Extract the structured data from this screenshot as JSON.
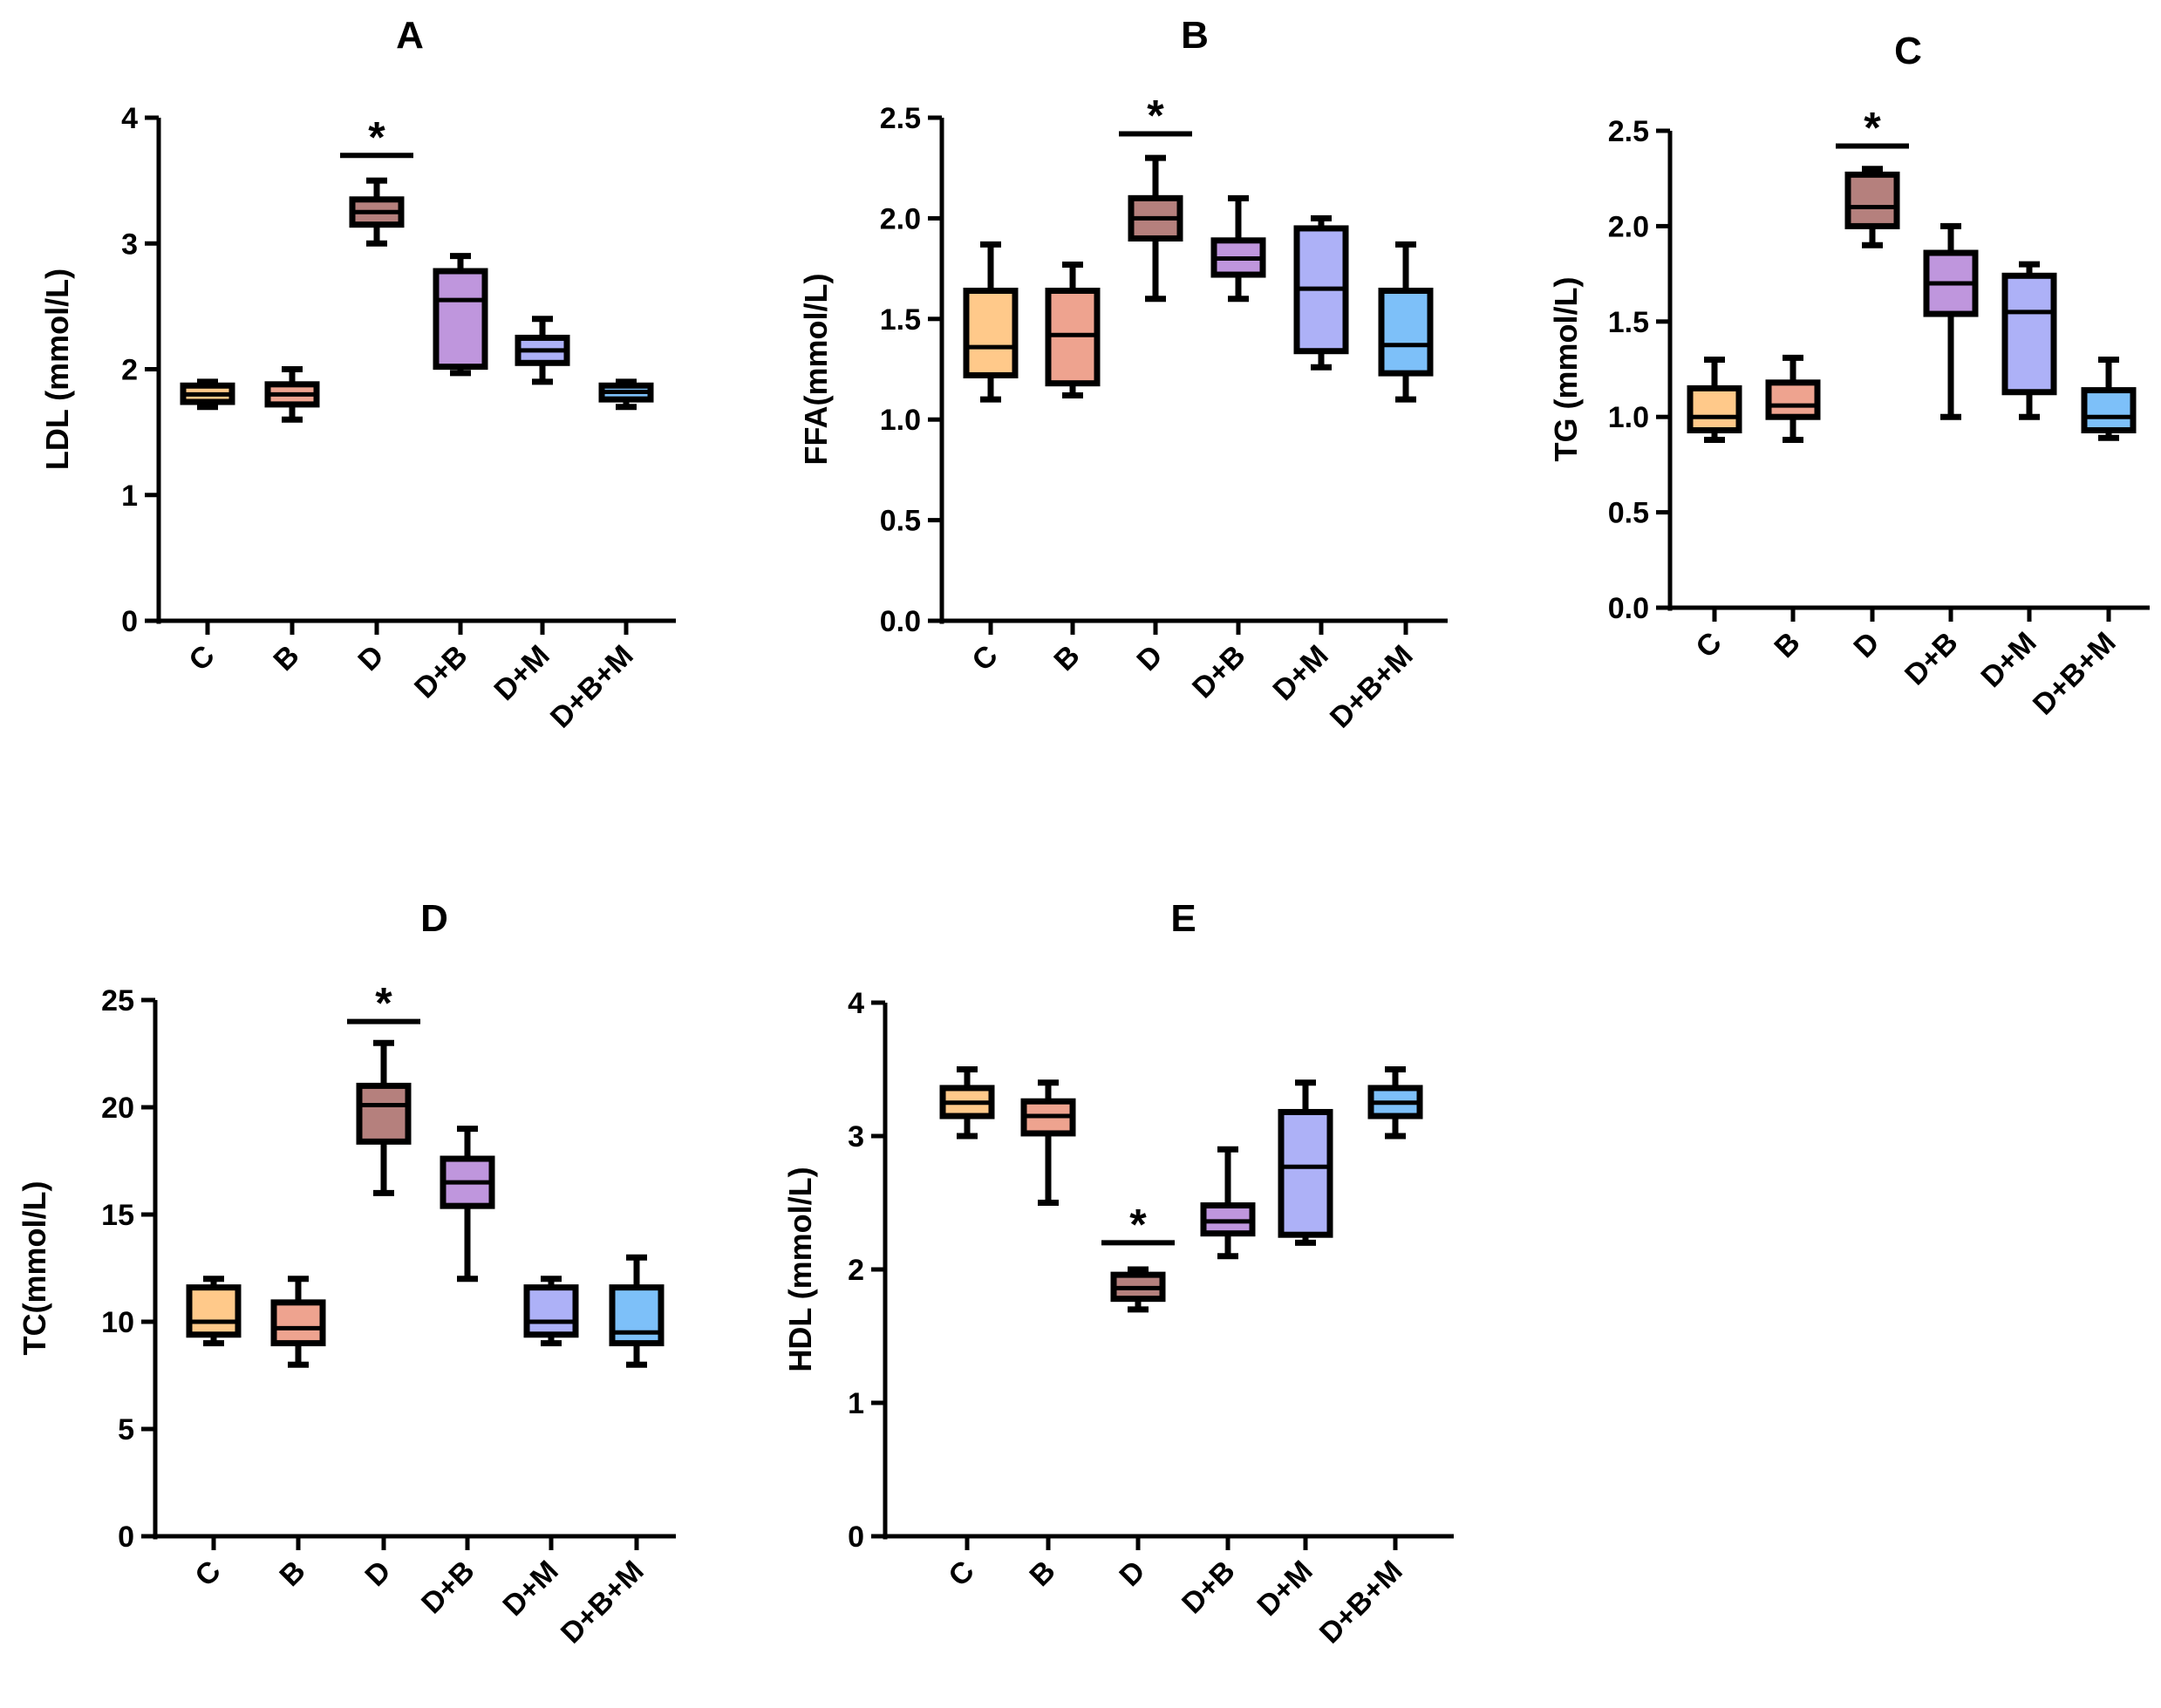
{
  "figure": {
    "colors": {
      "C": "#FFC98A",
      "B": "#EEA38F",
      "D": "#B5807D",
      "D+B": "#BF96DD",
      "D+M": "#ADB1F7",
      "D+B+M": "#7DC0F9",
      "outline": "#000000"
    }
  },
  "chart_data": [
    {
      "type": "box",
      "panel": "A",
      "title": "A",
      "ylabel": "LDL (mmol/L)",
      "ylim": [
        0,
        4
      ],
      "yticks": [
        "0",
        "1",
        "2",
        "3",
        "4"
      ],
      "yticks_values": [
        0,
        1,
        2,
        3,
        4
      ],
      "categories": [
        "C",
        "B",
        "D",
        "D+B",
        "D+M",
        "D+B+M"
      ],
      "boxes": [
        {
          "min": 1.7,
          "q1": 1.74,
          "median": 1.8,
          "q3": 1.87,
          "max": 1.9
        },
        {
          "min": 1.6,
          "q1": 1.72,
          "median": 1.8,
          "q3": 1.88,
          "max": 2.0
        },
        {
          "min": 3.0,
          "q1": 3.15,
          "median": 3.25,
          "q3": 3.35,
          "max": 3.5
        },
        {
          "min": 1.97,
          "q1": 2.02,
          "median": 2.55,
          "q3": 2.78,
          "max": 2.9
        },
        {
          "min": 1.9,
          "q1": 2.05,
          "median": 2.15,
          "q3": 2.25,
          "max": 2.4
        },
        {
          "min": 1.7,
          "q1": 1.76,
          "median": 1.82,
          "q3": 1.87,
          "max": 1.9
        }
      ],
      "significance": [
        {
          "category": "D",
          "label": "*",
          "value": 3.7
        }
      ]
    },
    {
      "type": "box",
      "panel": "B",
      "title": "B",
      "ylabel": "FFA(mmol/L)",
      "ylim": [
        0,
        2.5
      ],
      "yticks": [
        "0.0",
        "0.5",
        "1.0",
        "1.5",
        "2.0",
        "2.5"
      ],
      "yticks_values": [
        0,
        0.5,
        1.0,
        1.5,
        2.0,
        2.5
      ],
      "categories": [
        "C",
        "B",
        "D",
        "D+B",
        "D+M",
        "D+B+M"
      ],
      "boxes": [
        {
          "min": 1.1,
          "q1": 1.22,
          "median": 1.36,
          "q3": 1.64,
          "max": 1.87
        },
        {
          "min": 1.12,
          "q1": 1.18,
          "median": 1.42,
          "q3": 1.64,
          "max": 1.77
        },
        {
          "min": 1.6,
          "q1": 1.9,
          "median": 2.0,
          "q3": 2.1,
          "max": 2.3
        },
        {
          "min": 1.6,
          "q1": 1.72,
          "median": 1.8,
          "q3": 1.89,
          "max": 2.1
        },
        {
          "min": 1.26,
          "q1": 1.34,
          "median": 1.65,
          "q3": 1.95,
          "max": 2.0
        },
        {
          "min": 1.1,
          "q1": 1.23,
          "median": 1.37,
          "q3": 1.64,
          "max": 1.87
        }
      ],
      "significance": [
        {
          "category": "D",
          "label": "*",
          "value": 2.42
        }
      ]
    },
    {
      "type": "box",
      "panel": "C",
      "title": "C",
      "ylabel": "TG (mmol/L)",
      "ylim": [
        0,
        2.5
      ],
      "yticks": [
        "0.0",
        "0.5",
        "1.0",
        "1.5",
        "2.0",
        "2.5"
      ],
      "yticks_values": [
        0,
        0.5,
        1.0,
        1.5,
        2.0,
        2.5
      ],
      "categories": [
        "C",
        "B",
        "D",
        "D+B",
        "D+M",
        "D+B+M"
      ],
      "boxes": [
        {
          "min": 0.88,
          "q1": 0.93,
          "median": 1.0,
          "q3": 1.15,
          "max": 1.3
        },
        {
          "min": 0.88,
          "q1": 1.0,
          "median": 1.06,
          "q3": 1.18,
          "max": 1.31
        },
        {
          "min": 1.9,
          "q1": 2.0,
          "median": 2.1,
          "q3": 2.27,
          "max": 2.3
        },
        {
          "min": 1.0,
          "q1": 1.54,
          "median": 1.7,
          "q3": 1.86,
          "max": 2.0
        },
        {
          "min": 1.0,
          "q1": 1.13,
          "median": 1.55,
          "q3": 1.74,
          "max": 1.8
        },
        {
          "min": 0.89,
          "q1": 0.93,
          "median": 1.0,
          "q3": 1.14,
          "max": 1.3
        }
      ],
      "significance": [
        {
          "category": "D",
          "label": "*",
          "value": 2.42
        }
      ]
    },
    {
      "type": "box",
      "panel": "D",
      "title": "D",
      "ylabel": "TC(mmol/L)",
      "ylim": [
        0,
        25
      ],
      "yticks": [
        "0",
        "5",
        "10",
        "15",
        "20",
        "25"
      ],
      "yticks_values": [
        0,
        5,
        10,
        15,
        20,
        25
      ],
      "categories": [
        "C",
        "B",
        "D",
        "D+B",
        "D+M",
        "D+B+M"
      ],
      "boxes": [
        {
          "min": 9.0,
          "q1": 9.4,
          "median": 10.0,
          "q3": 11.6,
          "max": 12.0
        },
        {
          "min": 8.0,
          "q1": 9.0,
          "median": 9.7,
          "q3": 10.9,
          "max": 12.0
        },
        {
          "min": 16.0,
          "q1": 18.4,
          "median": 20.1,
          "q3": 21.0,
          "max": 23.0
        },
        {
          "min": 12.0,
          "q1": 15.4,
          "median": 16.5,
          "q3": 17.6,
          "max": 19.0
        },
        {
          "min": 9.0,
          "q1": 9.4,
          "median": 10.0,
          "q3": 11.6,
          "max": 12.0
        },
        {
          "min": 8.0,
          "q1": 9.0,
          "median": 9.5,
          "q3": 11.6,
          "max": 13.0
        }
      ],
      "significance": [
        {
          "category": "D",
          "label": "*",
          "value": 24.0
        }
      ]
    },
    {
      "type": "box",
      "panel": "E",
      "title": "E",
      "ylabel": "HDL (mmol/L)",
      "ylim": [
        0,
        4
      ],
      "yticks": [
        "0",
        "1",
        "2",
        "3",
        "4"
      ],
      "yticks_values": [
        0,
        1,
        2,
        3,
        4
      ],
      "categories": [
        "C",
        "B",
        "D",
        "D+B",
        "D+M",
        "D+B+M"
      ],
      "boxes": [
        {
          "min": 3.0,
          "q1": 3.15,
          "median": 3.25,
          "q3": 3.36,
          "max": 3.5
        },
        {
          "min": 2.5,
          "q1": 3.02,
          "median": 3.15,
          "q3": 3.26,
          "max": 3.4
        },
        {
          "min": 1.7,
          "q1": 1.78,
          "median": 1.86,
          "q3": 1.96,
          "max": 2.0
        },
        {
          "min": 2.1,
          "q1": 2.27,
          "median": 2.36,
          "q3": 2.48,
          "max": 2.9
        },
        {
          "min": 2.2,
          "q1": 2.26,
          "median": 2.77,
          "q3": 3.18,
          "max": 3.4
        },
        {
          "min": 3.0,
          "q1": 3.15,
          "median": 3.25,
          "q3": 3.36,
          "max": 3.5
        }
      ],
      "significance": [
        {
          "category": "D",
          "label": "*",
          "value": 2.2
        }
      ]
    }
  ]
}
